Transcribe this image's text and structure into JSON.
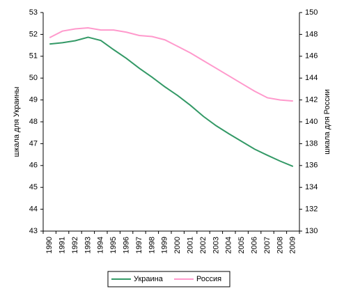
{
  "chart_data": {
    "type": "line",
    "categories": [
      "1990",
      "1991",
      "1992",
      "1993",
      "1994",
      "1995",
      "1996",
      "1997",
      "1998",
      "1999",
      "2000",
      "2001",
      "2002",
      "2003",
      "2004",
      "2005",
      "2006",
      "2007",
      "2008",
      "2009"
    ],
    "series": [
      {
        "name": "Украина",
        "color": "#339966",
        "values": [
          51.56,
          51.62,
          51.71,
          51.87,
          51.72,
          51.3,
          50.9,
          50.45,
          50.04,
          49.6,
          49.2,
          48.75,
          48.25,
          47.82,
          47.45,
          47.1,
          46.75,
          46.47,
          46.2,
          45.96
        ]
      },
      {
        "name": "Россия",
        "color": "#ff99cc",
        "axis": "y2",
        "values": [
          147.7,
          148.3,
          148.5,
          148.6,
          148.4,
          148.4,
          148.2,
          147.9,
          147.8,
          147.5,
          146.9,
          146.3,
          145.6,
          144.9,
          144.2,
          143.5,
          142.8,
          142.2,
          142.0,
          141.9
        ]
      }
    ],
    "ylabel": "шкала для Украины",
    "y2label": "шкала для России",
    "ylim": [
      43,
      53
    ],
    "yticks": [
      43,
      44,
      45,
      46,
      47,
      48,
      49,
      50,
      51,
      52,
      53
    ],
    "y2lim": [
      130,
      150
    ],
    "y2ticks": [
      130,
      132,
      134,
      136,
      138,
      140,
      142,
      144,
      146,
      148,
      150
    ],
    "legend": "bottom",
    "grid": false
  }
}
